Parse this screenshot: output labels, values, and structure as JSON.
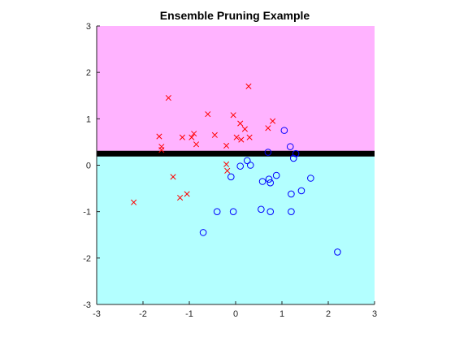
{
  "chart_data": {
    "type": "scatter",
    "title": "Ensemble Pruning Example",
    "xlabel": "",
    "ylabel": "",
    "xlim": [
      -3,
      3
    ],
    "ylim": [
      -3,
      3
    ],
    "x_ticks": [
      -3,
      -2,
      -1,
      0,
      1,
      2,
      3
    ],
    "y_ticks": [
      3,
      2,
      1,
      0,
      -1,
      -2,
      -3
    ],
    "grid": false,
    "regions": [
      {
        "label": "upper-region",
        "y_from": 0.25,
        "y_to": 3,
        "color": "#ffb3ff"
      },
      {
        "label": "lower-region",
        "y_from": -3,
        "y_to": 0.25,
        "color": "#b3ffff"
      }
    ],
    "boundary": {
      "y": 0.25,
      "color": "#000000"
    },
    "series": [
      {
        "marker": "x",
        "color": "#ff0000",
        "points": [
          [
            -2.2,
            -0.8
          ],
          [
            -1.65,
            0.62
          ],
          [
            -1.6,
            0.4
          ],
          [
            -1.6,
            0.33
          ],
          [
            -1.45,
            1.45
          ],
          [
            -1.35,
            -0.25
          ],
          [
            -1.2,
            -0.7
          ],
          [
            -1.15,
            0.6
          ],
          [
            -1.05,
            -0.62
          ],
          [
            -0.95,
            0.6
          ],
          [
            -0.9,
            0.68
          ],
          [
            -0.85,
            0.45
          ],
          [
            -0.6,
            1.1
          ],
          [
            -0.45,
            0.65
          ],
          [
            -0.2,
            0.42
          ],
          [
            -0.2,
            0.02
          ],
          [
            -0.18,
            -0.12
          ],
          [
            -0.05,
            1.08
          ],
          [
            0.02,
            0.6
          ],
          [
            0.1,
            0.9
          ],
          [
            0.12,
            0.55
          ],
          [
            0.2,
            0.78
          ],
          [
            0.28,
            1.7
          ],
          [
            0.3,
            0.6
          ],
          [
            0.7,
            0.8
          ],
          [
            0.8,
            0.95
          ]
        ]
      },
      {
        "marker": "o",
        "color": "#0000ff",
        "points": [
          [
            -0.7,
            -1.45
          ],
          [
            -0.4,
            -1.0
          ],
          [
            -0.1,
            -0.25
          ],
          [
            -0.05,
            -1.0
          ],
          [
            0.1,
            -0.02
          ],
          [
            0.25,
            0.1
          ],
          [
            0.32,
            0.0
          ],
          [
            0.55,
            -0.95
          ],
          [
            0.58,
            -0.35
          ],
          [
            0.7,
            0.28
          ],
          [
            0.72,
            -0.3
          ],
          [
            0.75,
            -0.38
          ],
          [
            0.75,
            -1.0
          ],
          [
            0.88,
            -0.22
          ],
          [
            1.05,
            0.75
          ],
          [
            1.18,
            0.4
          ],
          [
            1.2,
            -0.62
          ],
          [
            1.2,
            -1.0
          ],
          [
            1.25,
            0.15
          ],
          [
            1.3,
            0.25
          ],
          [
            1.42,
            -0.55
          ],
          [
            1.62,
            -0.28
          ],
          [
            2.2,
            -1.87
          ]
        ]
      }
    ]
  }
}
